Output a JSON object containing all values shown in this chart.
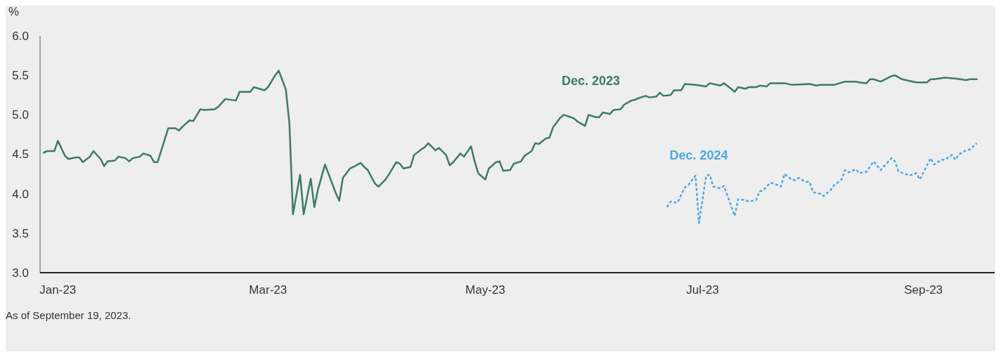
{
  "chart_data": {
    "type": "line",
    "ylabel": "%",
    "annotations": [
      "As of September 19, 2023."
    ],
    "xlim": [
      "2022-12-27",
      "2023-09-21"
    ],
    "xticks": [
      {
        "value": "2023-01-01",
        "label": "Jan-23"
      },
      {
        "value": "2023-03-01",
        "label": "Mar-23"
      },
      {
        "value": "2023-05-01",
        "label": "May-23"
      },
      {
        "value": "2023-07-01",
        "label": "Jul-23"
      },
      {
        "value": "2023-09-01",
        "label": "Sep-23"
      }
    ],
    "ylim": [
      3,
      6
    ],
    "yticks": [
      {
        "value": 3,
        "label": "3.0"
      },
      {
        "value": 3.5,
        "label": "3.5"
      },
      {
        "value": 4,
        "label": "4.0"
      },
      {
        "value": 4.5,
        "label": "4.5"
      },
      {
        "value": 5,
        "label": "5.0"
      },
      {
        "value": 5.5,
        "label": "5.5"
      },
      {
        "value": 6,
        "label": "6.0"
      }
    ],
    "series": [
      {
        "name": "Dec. 2023",
        "color": "#3d7a64",
        "line_style": "solid",
        "x": [
          "2022-12-28",
          "2022-12-29",
          "2022-12-31",
          "2023-01-01",
          "2023-01-03",
          "2023-01-04",
          "2023-01-06",
          "2023-01-07",
          "2023-01-08",
          "2023-01-10",
          "2023-01-11",
          "2023-01-13",
          "2023-01-14",
          "2023-01-15",
          "2023-01-17",
          "2023-01-18",
          "2023-01-20",
          "2023-01-21",
          "2023-01-22",
          "2023-01-24",
          "2023-01-25",
          "2023-01-27",
          "2023-01-28",
          "2023-01-29",
          "2023-02-01",
          "2023-02-03",
          "2023-02-04",
          "2023-02-05",
          "2023-02-07",
          "2023-02-08",
          "2023-02-10",
          "2023-02-11",
          "2023-02-14",
          "2023-02-15",
          "2023-02-17",
          "2023-02-20",
          "2023-02-21",
          "2023-02-24",
          "2023-02-25",
          "2023-02-28",
          "2023-03-01",
          "2023-03-03",
          "2023-03-04",
          "2023-03-06",
          "2023-03-07",
          "2023-03-08",
          "2023-03-10",
          "2023-03-11",
          "2023-03-13",
          "2023-03-14",
          "2023-03-15",
          "2023-03-17",
          "2023-03-20",
          "2023-03-21",
          "2023-03-22",
          "2023-03-24",
          "2023-03-25",
          "2023-03-27",
          "2023-03-28",
          "2023-03-29",
          "2023-03-31",
          "2023-04-01",
          "2023-04-03",
          "2023-04-04",
          "2023-04-06",
          "2023-04-07",
          "2023-04-08",
          "2023-04-10",
          "2023-04-11",
          "2023-04-13",
          "2023-04-14",
          "2023-04-15",
          "2023-04-17",
          "2023-04-18",
          "2023-04-20",
          "2023-04-21",
          "2023-04-22",
          "2023-04-24",
          "2023-04-25",
          "2023-04-27",
          "2023-04-28",
          "2023-04-29",
          "2023-05-01",
          "2023-05-02",
          "2023-05-04",
          "2023-05-05",
          "2023-05-06",
          "2023-05-08",
          "2023-05-09",
          "2023-05-11",
          "2023-05-12",
          "2023-05-14",
          "2023-05-15",
          "2023-05-16",
          "2023-05-18",
          "2023-05-19",
          "2023-05-20",
          "2023-05-22",
          "2023-05-23",
          "2023-05-25",
          "2023-05-26",
          "2023-05-27",
          "2023-05-29",
          "2023-05-30",
          "2023-06-01",
          "2023-06-02",
          "2023-06-03",
          "2023-06-05",
          "2023-06-06",
          "2023-06-08",
          "2023-06-09",
          "2023-06-11",
          "2023-06-12",
          "2023-06-13",
          "2023-06-15",
          "2023-06-16",
          "2023-06-18",
          "2023-06-19",
          "2023-06-20",
          "2023-06-22",
          "2023-06-23",
          "2023-06-25",
          "2023-06-26",
          "2023-06-29",
          "2023-07-02",
          "2023-07-03",
          "2023-07-06",
          "2023-07-07",
          "2023-07-09",
          "2023-07-10",
          "2023-07-11",
          "2023-07-13",
          "2023-07-14",
          "2023-07-16",
          "2023-07-17",
          "2023-07-19",
          "2023-07-20",
          "2023-07-21",
          "2023-07-24",
          "2023-07-26",
          "2023-07-31",
          "2023-08-02",
          "2023-08-03",
          "2023-08-07",
          "2023-08-10",
          "2023-08-13",
          "2023-08-14",
          "2023-08-16",
          "2023-08-17",
          "2023-08-18",
          "2023-08-20",
          "2023-08-23",
          "2023-08-24",
          "2023-08-26",
          "2023-08-28",
          "2023-08-30",
          "2023-09-02",
          "2023-09-03",
          "2023-09-04",
          "2023-09-07",
          "2023-09-10",
          "2023-09-13",
          "2023-09-14",
          "2023-09-16"
        ],
        "values": [
          4.52,
          4.54,
          4.54,
          4.67,
          4.48,
          4.44,
          4.46,
          4.46,
          4.4,
          4.47,
          4.54,
          4.44,
          4.35,
          4.41,
          4.42,
          4.47,
          4.45,
          4.41,
          4.45,
          4.47,
          4.51,
          4.48,
          4.4,
          4.4,
          4.83,
          4.83,
          4.8,
          4.85,
          4.93,
          4.92,
          5.07,
          5.06,
          5.07,
          5.1,
          5.2,
          5.18,
          5.29,
          5.29,
          5.35,
          5.31,
          5.35,
          5.5,
          5.56,
          5.32,
          4.89,
          3.74,
          4.24,
          3.74,
          4.19,
          3.83,
          4.05,
          4.37,
          4.01,
          3.91,
          4.2,
          4.32,
          4.34,
          4.39,
          4.34,
          4.3,
          4.13,
          4.09,
          4.18,
          4.25,
          4.4,
          4.38,
          4.32,
          4.34,
          4.49,
          4.56,
          4.59,
          4.64,
          4.55,
          4.58,
          4.49,
          4.36,
          4.4,
          4.51,
          4.47,
          4.6,
          4.41,
          4.26,
          4.18,
          4.32,
          4.4,
          4.41,
          4.29,
          4.3,
          4.38,
          4.41,
          4.48,
          4.54,
          4.64,
          4.63,
          4.7,
          4.71,
          4.84,
          4.96,
          5.0,
          4.97,
          4.95,
          4.91,
          4.86,
          5.0,
          4.97,
          4.97,
          5.03,
          5.01,
          5.06,
          5.07,
          5.13,
          5.18,
          5.19,
          5.21,
          5.24,
          5.22,
          5.23,
          5.28,
          5.24,
          5.25,
          5.31,
          5.31,
          5.39,
          5.38,
          5.36,
          5.4,
          5.37,
          5.4,
          5.33,
          5.29,
          5.35,
          5.33,
          5.35,
          5.35,
          5.37,
          5.36,
          5.4,
          5.4,
          5.4,
          5.38,
          5.39,
          5.37,
          5.38,
          5.38,
          5.42,
          5.42,
          5.41,
          5.4,
          5.45,
          5.45,
          5.42,
          5.49,
          5.5,
          5.45,
          5.43,
          5.41,
          5.41,
          5.45,
          5.45,
          5.47,
          5.46,
          5.44,
          5.45,
          5.45
        ]
      },
      {
        "name": "Dec. 2024",
        "color": "#4ea8e0",
        "line_style": "dashed",
        "x": [
          "2023-06-21",
          "2023-06-22",
          "2023-06-23",
          "2023-06-24",
          "2023-06-26",
          "2023-06-27",
          "2023-06-29",
          "2023-06-30",
          "2023-07-02",
          "2023-07-03",
          "2023-07-04",
          "2023-07-06",
          "2023-07-07",
          "2023-07-10",
          "2023-07-11",
          "2023-07-13",
          "2023-07-14",
          "2023-07-16",
          "2023-07-17",
          "2023-07-18",
          "2023-07-20",
          "2023-07-21",
          "2023-07-23",
          "2023-07-24",
          "2023-07-26",
          "2023-07-27",
          "2023-07-28",
          "2023-07-30",
          "2023-07-31",
          "2023-08-01",
          "2023-08-03",
          "2023-08-04",
          "2023-08-06",
          "2023-08-07",
          "2023-08-09",
          "2023-08-10",
          "2023-08-11",
          "2023-08-13",
          "2023-08-14",
          "2023-08-16",
          "2023-08-18",
          "2023-08-20",
          "2023-08-23",
          "2023-08-24",
          "2023-08-25",
          "2023-08-27",
          "2023-08-28",
          "2023-08-30",
          "2023-08-31",
          "2023-09-03",
          "2023-09-04",
          "2023-09-06",
          "2023-09-07",
          "2023-09-09",
          "2023-09-10",
          "2023-09-11",
          "2023-09-13",
          "2023-09-14",
          "2023-09-16"
        ],
        "values": [
          3.83,
          3.9,
          3.89,
          3.89,
          4.08,
          4.11,
          4.23,
          3.63,
          4.23,
          4.24,
          4.09,
          4.07,
          4.1,
          3.72,
          3.93,
          3.92,
          3.9,
          3.92,
          4.03,
          4.04,
          4.14,
          4.13,
          4.09,
          4.25,
          4.18,
          4.17,
          4.2,
          4.15,
          4.15,
          4.02,
          4.0,
          3.97,
          4.05,
          4.11,
          4.18,
          4.3,
          4.27,
          4.31,
          4.26,
          4.28,
          4.41,
          4.3,
          4.45,
          4.41,
          4.28,
          4.25,
          4.23,
          4.26,
          4.18,
          4.45,
          4.37,
          4.43,
          4.43,
          4.49,
          4.43,
          4.5,
          4.55,
          4.56,
          4.64
        ]
      }
    ]
  }
}
